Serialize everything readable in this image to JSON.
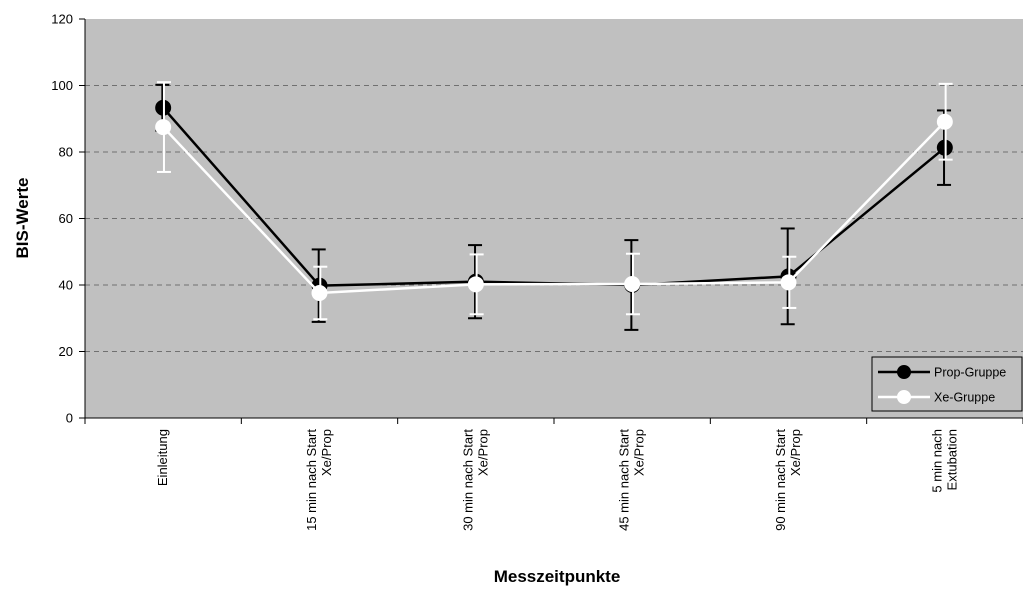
{
  "chart_data": {
    "type": "line",
    "title": "",
    "xlabel": "Messzeitpunkte",
    "ylabel": "BIS-Werte",
    "ylim": [
      0,
      120
    ],
    "yticks": [
      0,
      20,
      40,
      60,
      80,
      100,
      120
    ],
    "grid": true,
    "legend_position": "bottom-right",
    "plot_background": "#c0c0c0",
    "categories": [
      [
        "Einleitung"
      ],
      [
        "15 min nach Start",
        "Xe/Prop"
      ],
      [
        "30 min nach Start",
        "Xe/Prop"
      ],
      [
        "45 min nach Start",
        "Xe/Prop"
      ],
      [
        "90 min nach Start",
        "Xe/Prop"
      ],
      [
        "5 min nach",
        "Extubation"
      ]
    ],
    "series": [
      {
        "name": "Prop-Gruppe",
        "color": "#000000",
        "values": [
          93.3,
          39.8,
          41.0,
          40.0,
          42.6,
          81.3
        ],
        "error_upper": [
          100.2,
          50.7,
          52.0,
          53.5,
          57.0,
          92.5
        ],
        "error_lower": [
          86.4,
          28.9,
          30.0,
          26.5,
          28.2,
          70.1
        ]
      },
      {
        "name": "Xe-Gruppe",
        "color": "#ffffff",
        "values": [
          87.5,
          37.6,
          40.2,
          40.3,
          40.8,
          89.1
        ],
        "error_upper": [
          101.0,
          45.5,
          49.2,
          49.4,
          48.5,
          100.5
        ],
        "error_lower": [
          74.0,
          29.7,
          31.2,
          31.2,
          33.1,
          77.7
        ]
      }
    ]
  }
}
